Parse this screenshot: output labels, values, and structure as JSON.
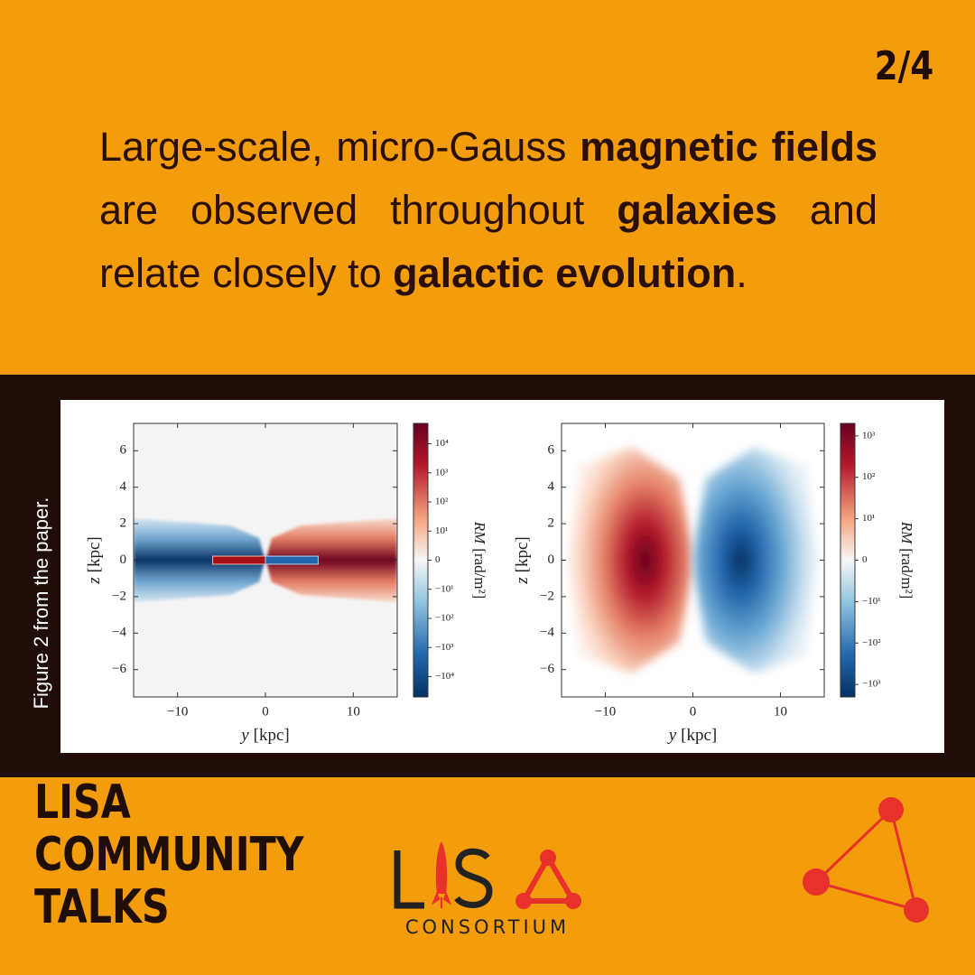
{
  "page_number": "2/4",
  "paragraph": [
    {
      "text": "Large-scale, micro-Gauss ",
      "bold": false
    },
    {
      "text": "magnetic fields",
      "bold": true
    },
    {
      "text": " are observed throughout ",
      "bold": false
    },
    {
      "text": "galaxies",
      "bold": true
    },
    {
      "text": " and relate closely to ",
      "bold": false
    },
    {
      "text": "galactic evolution",
      "bold": true
    },
    {
      "text": ".",
      "bold": false
    }
  ],
  "figure": {
    "caption": "Figure  2 from the paper.",
    "panels": [
      {
        "xlabel": {
          "var": "y",
          "unit": "[kpc]"
        },
        "ylabel": {
          "var": "z",
          "unit": "[kpc]"
        },
        "xlim": [
          -15,
          15
        ],
        "ylim": [
          -7.5,
          7.5
        ],
        "xticks": [
          {
            "value": -10,
            "label": "−10"
          },
          0,
          10
        ],
        "yticks": [
          {
            "value": -6,
            "label": "−6"
          },
          {
            "value": -4,
            "label": "−4"
          },
          {
            "value": -2,
            "label": "−2"
          },
          0,
          2,
          4,
          6
        ],
        "colorbar": {
          "label": {
            "var": "RM",
            "unit": "[rad/m²]"
          },
          "scale": "symlog",
          "linthresh": 10,
          "lim": [
            -50000,
            50000
          ],
          "ticks": [
            {
              "value": 10000,
              "label": "10⁴"
            },
            {
              "value": 1000,
              "label": "10³"
            },
            {
              "value": 100,
              "label": "10²"
            },
            {
              "value": 10,
              "label": "10¹"
            },
            0,
            {
              "value": -10,
              "label": "−10¹"
            },
            {
              "value": -100,
              "label": "−10²"
            },
            {
              "value": -1000,
              "label": "−10³"
            },
            {
              "value": -10000,
              "label": "−10⁴"
            }
          ]
        }
      },
      {
        "xlabel": {
          "var": "y",
          "unit": "[kpc]"
        },
        "ylabel": {
          "var": "z",
          "unit": "[kpc]"
        },
        "xlim": [
          -15,
          15
        ],
        "ylim": [
          -7.5,
          7.5
        ],
        "xticks": [
          {
            "value": -10,
            "label": "−10"
          },
          0,
          10
        ],
        "yticks": [
          {
            "value": -6,
            "label": "−6"
          },
          {
            "value": -4,
            "label": "−4"
          },
          {
            "value": -2,
            "label": "−2"
          },
          0,
          2,
          4,
          6
        ],
        "colorbar": {
          "label": {
            "var": "RM",
            "unit": "[rad/m²]"
          },
          "scale": "symlog",
          "linthresh": 10,
          "lim": [
            -2000,
            2000
          ],
          "ticks": [
            {
              "value": 1000,
              "label": "10³"
            },
            {
              "value": 100,
              "label": "10²"
            },
            {
              "value": 10,
              "label": "10¹"
            },
            0,
            {
              "value": -10,
              "label": "−10¹"
            },
            {
              "value": -100,
              "label": "−10²"
            },
            {
              "value": -1000,
              "label": "−10³"
            }
          ]
        }
      }
    ]
  },
  "footer": {
    "title_lines": [
      "LISA",
      "COMMUNITY",
      "TALKS"
    ],
    "logo_subtitle": "CONSORTIUM"
  }
}
